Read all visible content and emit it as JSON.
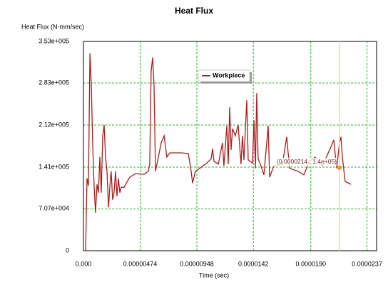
{
  "chart_data": {
    "type": "line",
    "title": "Heat Flux",
    "y_label": "Heat Flux (N-mm/sec)",
    "x_label": "Time (sec)",
    "x": [
      0,
      1.8e-07,
      3e-07,
      4.2e-07,
      5.4e-07,
      6.6e-07,
      7.7e-07,
      8.9e-07,
      1.01e-06,
      1.13e-06,
      1.25e-06,
      1.37e-06,
      1.49e-06,
      1.61e-06,
      1.73e-06,
      1.85e-06,
      1.97e-06,
      2.09e-06,
      2.21e-06,
      2.32e-06,
      2.44e-06,
      2.56e-06,
      2.68e-06,
      2.8e-06,
      2.92e-06,
      3.04e-06,
      3.16e-06,
      3.4e-06,
      3.64e-06,
      3.87e-06,
      4.35e-06,
      5.07e-06,
      5.42e-06,
      5.54e-06,
      5.66e-06,
      5.78e-06,
      5.9e-06,
      6.02e-06,
      6.26e-06,
      6.5e-06,
      6.74e-06,
      6.97e-06,
      7.21e-06,
      7.57e-06,
      8.17e-06,
      8.76e-06,
      9e-06,
      9.12e-06,
      9.36e-06,
      9.72e-06,
      1.031e-05,
      1.067e-05,
      1.079e-05,
      1.091e-05,
      1.127e-05,
      1.162e-05,
      1.174e-05,
      1.198e-05,
      1.21e-05,
      1.222e-05,
      1.234e-05,
      1.246e-05,
      1.269e-05,
      1.293e-05,
      1.317e-05,
      1.329e-05,
      1.341e-05,
      1.365e-05,
      1.377e-05,
      1.413e-05,
      1.425e-05,
      1.437e-05,
      1.448e-05,
      1.46e-05,
      1.484e-05,
      1.508e-05,
      1.544e-05,
      1.556e-05,
      1.591e-05,
      1.663e-05,
      1.699e-05,
      1.722e-05,
      1.794e-05,
      1.842e-05,
      1.889e-05,
      1.937e-05,
      1.997e-05,
      2.068e-05,
      2.092e-05,
      2.116e-05,
      2.14e-05,
      2.152e-05,
      2.164e-05,
      2.187e-05,
      2.235e-05
    ],
    "series": [
      {
        "name": "Workpiece",
        "color": "#b01c1c",
        "values": [
          0,
          0,
          122000,
          110000,
          333000,
          278000,
          182000,
          110000,
          64000,
          112000,
          98000,
          158000,
          98000,
          194000,
          212000,
          158000,
          134000,
          73000,
          110000,
          134000,
          86000,
          98000,
          134000,
          92000,
          122000,
          98000,
          107000,
          107000,
          116000,
          124000,
          130000,
          129000,
          134000,
          146000,
          302000,
          326000,
          278000,
          134000,
          158000,
          182000,
          194000,
          158000,
          165000,
          165000,
          165000,
          164000,
          134000,
          114000,
          134000,
          139000,
          148000,
          155000,
          172000,
          151000,
          146000,
          182000,
          143000,
          211000,
          146000,
          242000,
          170000,
          206000,
          194000,
          212000,
          146000,
          194000,
          153000,
          254000,
          153000,
          148000,
          220000,
          139000,
          266000,
          155000,
          143000,
          128000,
          211000,
          124000,
          143000,
          146000,
          192000,
          139000,
          134000,
          128000,
          151000,
          158000,
          143000,
          175000,
          187000,
          139000,
          182000,
          192000,
          158000,
          117000,
          112000
        ]
      }
    ],
    "xlim": [
      0,
      2.45e-05
    ],
    "ylim": [
      0,
      353000
    ],
    "xticks": [
      {
        "value": 0,
        "label": "0.000"
      },
      {
        "value": 4.74e-06,
        "label": "0.00000474"
      },
      {
        "value": 9.48e-06,
        "label": "0.00000948"
      },
      {
        "value": 1.42e-05,
        "label": "0.0000142"
      },
      {
        "value": 1.9e-05,
        "label": "0.0000190"
      },
      {
        "value": 2.37e-05,
        "label": "0.0000237"
      }
    ],
    "yticks": [
      0,
      {
        "value": 70700,
        "label": "7.07e+004"
      },
      {
        "value": 141000,
        "label": "1.41e+005"
      },
      {
        "value": 212000,
        "label": "2.12e+005"
      },
      {
        "value": 283000,
        "label": "2.83e+005"
      },
      {
        "value": 353000,
        "label": "3.53e+005"
      }
    ],
    "grid": true,
    "grid_color": "#22c022",
    "cursor": {
      "x": 2.14e-05,
      "y": 140000,
      "label": "(0.0000214 , 1.4e+05)",
      "color": "#f0e060",
      "marker_color": "#e89a30"
    }
  }
}
